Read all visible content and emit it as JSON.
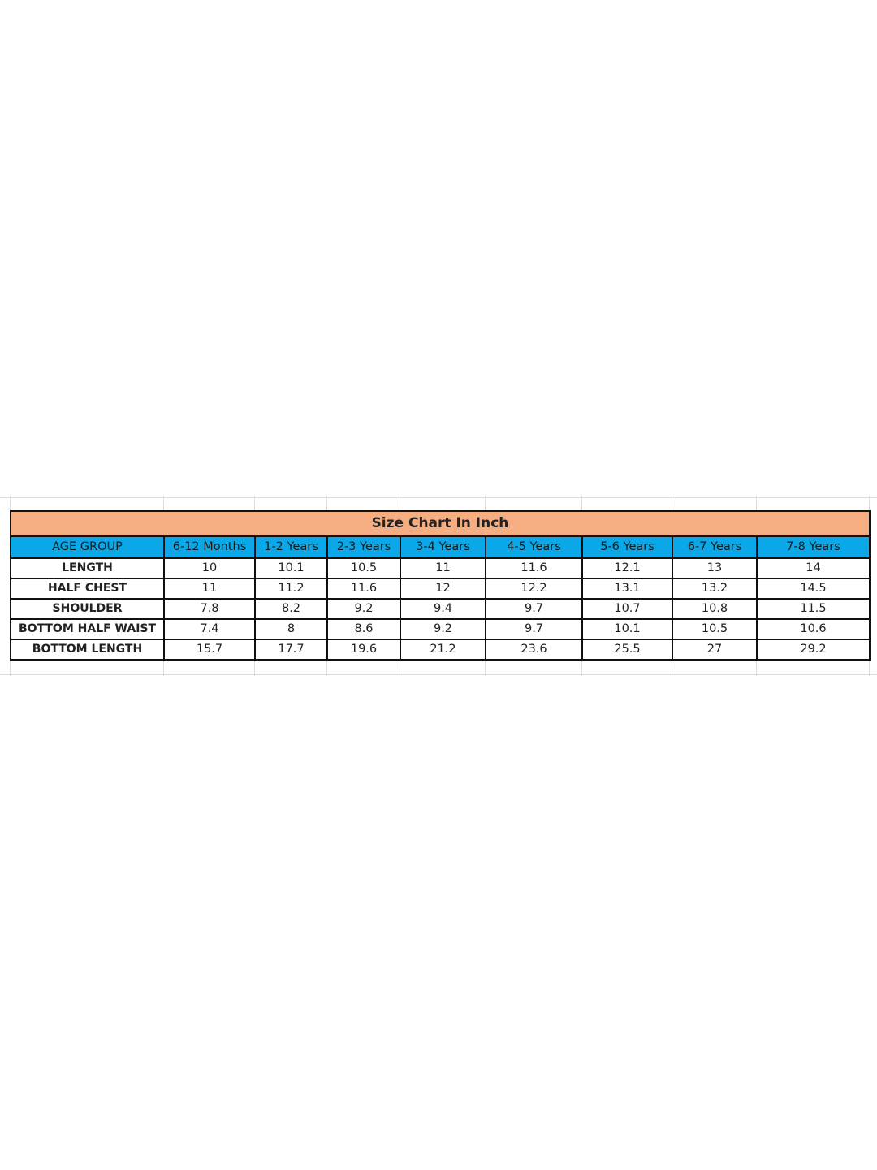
{
  "title": "Size Chart In Inch",
  "header": [
    "AGE GROUP",
    "6-12 Months",
    "1-2 Years",
    "2-3 Years",
    "3-4 Years",
    "4-5 Years",
    "5-6 Years",
    "6-7 Years",
    "7-8 Years"
  ],
  "rows": [
    {
      "label": "LENGTH",
      "values": [
        "10",
        "10.1",
        "10.5",
        "11",
        "11.6",
        "12.1",
        "13",
        "14"
      ]
    },
    {
      "label": "HALF CHEST",
      "values": [
        "11",
        "11.2",
        "11.6",
        "12",
        "12.2",
        "13.1",
        "13.2",
        "14.5"
      ]
    },
    {
      "label": "SHOULDER",
      "values": [
        "7.8",
        "8.2",
        "9.2",
        "9.4",
        "9.7",
        "10.7",
        "10.8",
        "11.5"
      ]
    },
    {
      "label": "BOTTOM  HALF WAIST",
      "values": [
        "7.4",
        "8",
        "8.6",
        "9.2",
        "9.7",
        "10.1",
        "10.5",
        "10.6"
      ]
    },
    {
      "label": "BOTTOM LENGTH",
      "values": [
        "15.7",
        "17.7",
        "19.6",
        "21.2",
        "23.6",
        "25.5",
        "27",
        "29.2"
      ]
    }
  ],
  "colors": {
    "title_bg": "#f4ae82",
    "header_bg": "#0aa8e8",
    "border": "#111111"
  }
}
